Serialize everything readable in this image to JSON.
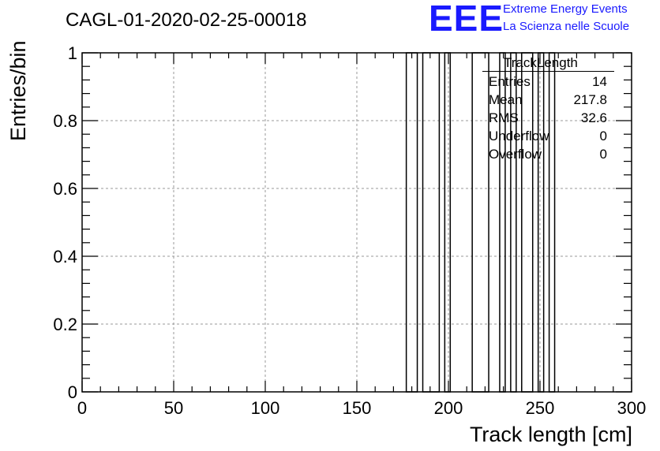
{
  "header": {
    "run_title": "CAGL-01-2020-02-25-00018",
    "logo_text": "EEE",
    "org_line1": "Extreme Energy Events",
    "org_line2": "La Scienza nelle Scuole",
    "brand_color": "#1a1aff"
  },
  "stats": {
    "name": "TrackLength",
    "rows": [
      {
        "label": "Entries",
        "value": "14"
      },
      {
        "label": "Mean",
        "value": "217.8"
      },
      {
        "label": "RMS",
        "value": "32.6"
      },
      {
        "label": "Underflow",
        "value": "0"
      },
      {
        "label": "Overflow",
        "value": "0"
      }
    ]
  },
  "chart_data": {
    "type": "histogram",
    "xlabel": "Track length [cm]",
    "ylabel": "Entries/bin",
    "xlim": [
      0,
      300
    ],
    "ylim": [
      0,
      1
    ],
    "grid": true,
    "x_ticks": [
      0,
      50,
      100,
      150,
      200,
      250,
      300
    ],
    "x_tick_labels": [
      "0",
      "50",
      "100",
      "150",
      "200",
      "250",
      "300"
    ],
    "y_ticks": [
      0,
      0.2,
      0.4,
      0.6,
      0.8,
      1
    ],
    "y_tick_labels": [
      "0",
      "0.2",
      "0.4",
      "0.6",
      "0.8",
      "1"
    ],
    "bins": [
      {
        "x0": 177,
        "x1": 183,
        "value": 1
      },
      {
        "x0": 186,
        "x1": 195,
        "value": 1
      },
      {
        "x0": 198,
        "x1": 201,
        "value": 1
      },
      {
        "x0": 213,
        "x1": 222,
        "value": 1
      },
      {
        "x0": 228,
        "x1": 231,
        "value": 1
      },
      {
        "x0": 234,
        "x1": 237,
        "value": 1
      },
      {
        "x0": 240,
        "x1": 246,
        "value": 1
      },
      {
        "x0": 249,
        "x1": 252,
        "value": 1
      },
      {
        "x0": 255,
        "x1": 258,
        "value": 1
      }
    ]
  }
}
